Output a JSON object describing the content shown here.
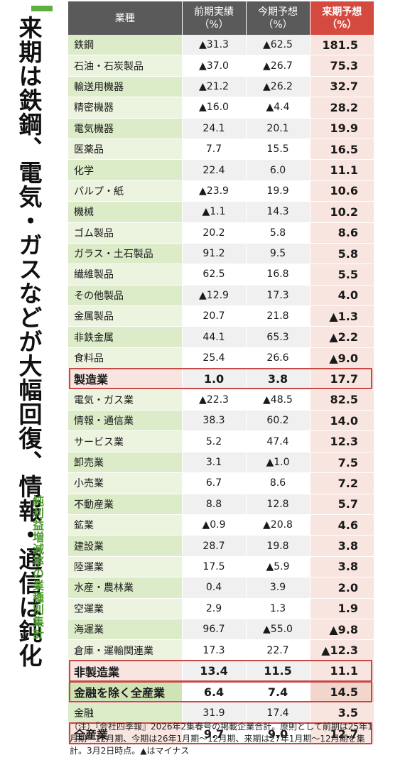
{
  "headline": "来期は鉄鋼、電気・ガスなどが大幅回復、情報・通信は鈍化",
  "subheadline": "純利益増減率の業種別集計",
  "accent_color": "#5fb040",
  "header_color": "#5a5a5a",
  "highlight_color": "#d44a3e",
  "columns": {
    "industry": "業種",
    "prev_line1": "前期実績",
    "prev_line2": "（%）",
    "curr_line1": "今期予想",
    "curr_line2": "（%）",
    "next_line1": "来期予想",
    "next_line2": "（%）"
  },
  "rows": [
    {
      "name": "鉄鋼",
      "prev": "▲31.3",
      "curr": "▲62.5",
      "next": "181.5"
    },
    {
      "name": "石油・石炭製品",
      "prev": "▲37.0",
      "curr": "▲26.7",
      "next": "75.3"
    },
    {
      "name": "輸送用機器",
      "prev": "▲21.2",
      "curr": "▲26.2",
      "next": "32.7"
    },
    {
      "name": "精密機器",
      "prev": "▲16.0",
      "curr": "▲4.4",
      "next": "28.2"
    },
    {
      "name": "電気機器",
      "prev": "24.1",
      "curr": "20.1",
      "next": "19.9"
    },
    {
      "name": "医薬品",
      "prev": "7.7",
      "curr": "15.5",
      "next": "16.5"
    },
    {
      "name": "化学",
      "prev": "22.4",
      "curr": "6.0",
      "next": "11.1"
    },
    {
      "name": "パルプ・紙",
      "prev": "▲23.9",
      "curr": "19.9",
      "next": "10.6"
    },
    {
      "name": "機械",
      "prev": "▲1.1",
      "curr": "14.3",
      "next": "10.2"
    },
    {
      "name": "ゴム製品",
      "prev": "20.2",
      "curr": "5.8",
      "next": "8.6"
    },
    {
      "name": "ガラス・土石製品",
      "prev": "91.2",
      "curr": "9.5",
      "next": "5.8"
    },
    {
      "name": "繊維製品",
      "prev": "62.5",
      "curr": "16.8",
      "next": "5.5"
    },
    {
      "name": "その他製品",
      "prev": "▲12.9",
      "curr": "17.3",
      "next": "4.0"
    },
    {
      "name": "金属製品",
      "prev": "20.7",
      "curr": "21.8",
      "next": "▲1.3"
    },
    {
      "name": "非鉄金属",
      "prev": "44.1",
      "curr": "65.3",
      "next": "▲2.2"
    },
    {
      "name": "食料品",
      "prev": "25.4",
      "curr": "26.6",
      "next": "▲9.0"
    },
    {
      "name": "製造業",
      "prev": "1.0",
      "curr": "3.8",
      "next": "17.7",
      "summary": true
    },
    {
      "name": "電気・ガス業",
      "prev": "▲22.3",
      "curr": "▲48.5",
      "next": "82.5"
    },
    {
      "name": "情報・通信業",
      "prev": "38.3",
      "curr": "60.2",
      "next": "14.0"
    },
    {
      "name": "サービス業",
      "prev": "5.2",
      "curr": "47.4",
      "next": "12.3"
    },
    {
      "name": "卸売業",
      "prev": "3.1",
      "curr": "▲1.0",
      "next": "7.5"
    },
    {
      "name": "小売業",
      "prev": "6.7",
      "curr": "8.6",
      "next": "7.2"
    },
    {
      "name": "不動産業",
      "prev": "8.8",
      "curr": "12.8",
      "next": "5.7"
    },
    {
      "name": "鉱業",
      "prev": "▲0.9",
      "curr": "▲20.8",
      "next": "4.6"
    },
    {
      "name": "建設業",
      "prev": "28.7",
      "curr": "19.8",
      "next": "3.8"
    },
    {
      "name": "陸運業",
      "prev": "17.5",
      "curr": "▲5.9",
      "next": "3.8"
    },
    {
      "name": "水産・農林業",
      "prev": "0.4",
      "curr": "3.9",
      "next": "2.0"
    },
    {
      "name": "空運業",
      "prev": "2.9",
      "curr": "1.3",
      "next": "1.9"
    },
    {
      "name": "海運業",
      "prev": "96.7",
      "curr": "▲55.0",
      "next": "▲9.8"
    },
    {
      "name": "倉庫・運輸関連業",
      "prev": "17.3",
      "curr": "22.7",
      "next": "▲12.3"
    },
    {
      "name": "非製造業",
      "prev": "13.4",
      "curr": "11.5",
      "next": "11.1",
      "summary": true
    },
    {
      "name": "金融を除く全産業",
      "prev": "6.4",
      "curr": "7.4",
      "next": "14.5",
      "summary": true
    },
    {
      "name": "金融",
      "prev": "31.9",
      "curr": "17.4",
      "next": "3.5"
    },
    {
      "name": "全産業",
      "prev": "9.7",
      "curr": "9.0",
      "next": "12.7",
      "summary": true
    }
  ],
  "note": "（注）『会社四季報』2026年2集春号の掲載企業合計。原則として前期は25年1月期〜12月期、今期は26年1月期〜12月期、来期は27年1月期〜12月期を集計。3月2日時点。▲はマイナス"
}
